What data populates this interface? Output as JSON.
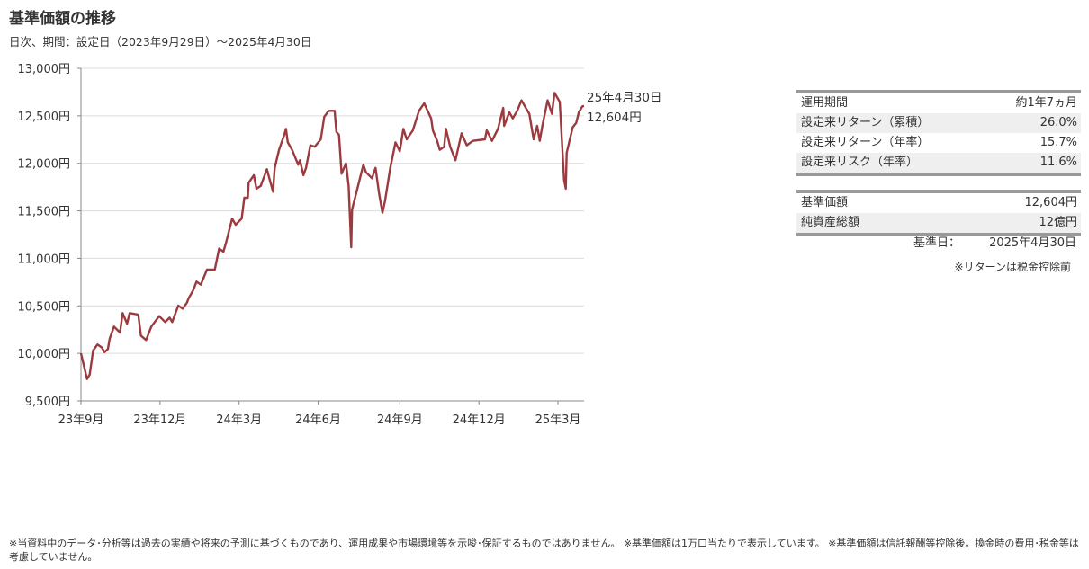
{
  "header": {
    "title": "基準価額の推移",
    "subtitle": "日次、期間：設定日（2023年9月29日）～2025年4月30日"
  },
  "chart_data": {
    "type": "line",
    "title": "",
    "xlabel": "",
    "ylabel": "",
    "ylim": [
      9500,
      13000
    ],
    "xlim": [
      "2023-09-29",
      "2025-04-30"
    ],
    "yticks": [
      9500,
      10000,
      10500,
      11000,
      11500,
      12000,
      12500,
      13000
    ],
    "ytick_labels": [
      "9,500円",
      "10,000円",
      "10,500円",
      "11,000円",
      "11,500円",
      "12,000円",
      "12,500円",
      "13,000円"
    ],
    "xticks": [
      "2023-09-29",
      "2023-12-29",
      "2024-03-29",
      "2024-06-28",
      "2024-09-30",
      "2024-12-30",
      "2025-03-31"
    ],
    "xtick_labels": [
      "23年9月",
      "23年12月",
      "24年3月",
      "24年6月",
      "24年9月",
      "24年12月",
      "25年3月"
    ],
    "grid": "horizontal",
    "line_color": "#9b3a3f",
    "end_label": {
      "date": "25年4月30日",
      "value": "12,604円"
    },
    "series": [
      {
        "points": [
          [
            "2023-09-29",
            10000
          ],
          [
            "2023-10-06",
            9730
          ],
          [
            "2023-10-09",
            9777
          ],
          [
            "2023-10-13",
            10030
          ],
          [
            "2023-10-18",
            10093
          ],
          [
            "2023-10-23",
            10062
          ],
          [
            "2023-10-26",
            10013
          ],
          [
            "2023-10-30",
            10045
          ],
          [
            "2023-11-01",
            10155
          ],
          [
            "2023-11-06",
            10282
          ],
          [
            "2023-11-13",
            10219
          ],
          [
            "2023-11-16",
            10424
          ],
          [
            "2023-11-21",
            10313
          ],
          [
            "2023-11-24",
            10424
          ],
          [
            "2023-12-04",
            10408
          ],
          [
            "2023-12-07",
            10187
          ],
          [
            "2023-12-13",
            10140
          ],
          [
            "2023-12-19",
            10282
          ],
          [
            "2023-12-28",
            10392
          ],
          [
            "2024-01-04",
            10330
          ],
          [
            "2024-01-09",
            10376
          ],
          [
            "2024-01-12",
            10330
          ],
          [
            "2024-01-19",
            10503
          ],
          [
            "2024-01-24",
            10471
          ],
          [
            "2024-01-29",
            10534
          ],
          [
            "2024-01-31",
            10581
          ],
          [
            "2024-02-05",
            10660
          ],
          [
            "2024-02-09",
            10755
          ],
          [
            "2024-02-14",
            10723
          ],
          [
            "2024-02-21",
            10881
          ],
          [
            "2024-03-01",
            10881
          ],
          [
            "2024-03-06",
            11102
          ],
          [
            "2024-03-11",
            11070
          ],
          [
            "2024-03-14",
            11165
          ],
          [
            "2024-03-21",
            11418
          ],
          [
            "2024-03-25",
            11354
          ],
          [
            "2024-04-01",
            11418
          ],
          [
            "2024-04-04",
            11638
          ],
          [
            "2024-04-08",
            11638
          ],
          [
            "2024-04-09",
            11796
          ],
          [
            "2024-04-15",
            11875
          ],
          [
            "2024-04-18",
            11733
          ],
          [
            "2024-04-23",
            11764
          ],
          [
            "2024-04-30",
            11938
          ],
          [
            "2024-05-07",
            11701
          ],
          [
            "2024-05-09",
            11953
          ],
          [
            "2024-05-14",
            12142
          ],
          [
            "2024-05-20",
            12300
          ],
          [
            "2024-05-22",
            12363
          ],
          [
            "2024-05-24",
            12221
          ],
          [
            "2024-05-29",
            12142
          ],
          [
            "2024-06-05",
            11985
          ],
          [
            "2024-06-07",
            12032
          ],
          [
            "2024-06-11",
            11875
          ],
          [
            "2024-06-14",
            11953
          ],
          [
            "2024-06-19",
            12190
          ],
          [
            "2024-06-24",
            12174
          ],
          [
            "2024-07-01",
            12253
          ],
          [
            "2024-07-05",
            12489
          ],
          [
            "2024-07-10",
            12553
          ],
          [
            "2024-07-17",
            12553
          ],
          [
            "2024-07-19",
            12331
          ],
          [
            "2024-07-22",
            12300
          ],
          [
            "2024-07-25",
            11890
          ],
          [
            "2024-07-30",
            12000
          ],
          [
            "2024-08-02",
            11764
          ],
          [
            "2024-08-05",
            11117
          ],
          [
            "2024-08-06",
            11512
          ],
          [
            "2024-08-19",
            11985
          ],
          [
            "2024-08-22",
            11906
          ],
          [
            "2024-08-29",
            11843
          ],
          [
            "2024-09-02",
            11953
          ],
          [
            "2024-09-06",
            11685
          ],
          [
            "2024-09-10",
            11480
          ],
          [
            "2024-09-13",
            11607
          ],
          [
            "2024-09-19",
            11953
          ],
          [
            "2024-09-25",
            12221
          ],
          [
            "2024-09-30",
            12127
          ],
          [
            "2024-10-04",
            12363
          ],
          [
            "2024-10-08",
            12253
          ],
          [
            "2024-10-15",
            12347
          ],
          [
            "2024-10-22",
            12553
          ],
          [
            "2024-10-28",
            12631
          ],
          [
            "2024-11-05",
            12473
          ],
          [
            "2024-11-07",
            12347
          ],
          [
            "2024-11-12",
            12237
          ],
          [
            "2024-11-15",
            12142
          ],
          [
            "2024-11-20",
            12174
          ],
          [
            "2024-11-22",
            12363
          ],
          [
            "2024-11-27",
            12174
          ],
          [
            "2024-12-03",
            12032
          ],
          [
            "2024-12-10",
            12316
          ],
          [
            "2024-12-16",
            12190
          ],
          [
            "2024-12-23",
            12237
          ],
          [
            "2025-01-06",
            12253
          ],
          [
            "2025-01-08",
            12347
          ],
          [
            "2025-01-14",
            12237
          ],
          [
            "2025-01-21",
            12363
          ],
          [
            "2025-01-27",
            12584
          ],
          [
            "2025-01-28",
            12395
          ],
          [
            "2025-02-03",
            12537
          ],
          [
            "2025-02-07",
            12473
          ],
          [
            "2025-02-12",
            12553
          ],
          [
            "2025-02-17",
            12663
          ],
          [
            "2025-02-21",
            12600
          ],
          [
            "2025-02-26",
            12521
          ],
          [
            "2025-03-03",
            12253
          ],
          [
            "2025-03-07",
            12395
          ],
          [
            "2025-03-10",
            12237
          ],
          [
            "2025-03-13",
            12395
          ],
          [
            "2025-03-19",
            12663
          ],
          [
            "2025-03-24",
            12521
          ],
          [
            "2025-03-27",
            12742
          ],
          [
            "2025-04-02",
            12647
          ],
          [
            "2025-04-07",
            11827
          ],
          [
            "2025-04-09",
            11733
          ],
          [
            "2025-04-10",
            12111
          ],
          [
            "2025-04-17",
            12379
          ],
          [
            "2025-04-21",
            12426
          ],
          [
            "2025-04-24",
            12537
          ],
          [
            "2025-04-28",
            12600
          ],
          [
            "2025-04-30",
            12604
          ]
        ]
      }
    ]
  },
  "stats_table": {
    "rows": [
      {
        "label": "運用期間",
        "value": "約1年7ヵ月"
      },
      {
        "label": "設定来リターン（累積）",
        "value": "26.0%"
      },
      {
        "label": "設定来リターン（年率）",
        "value": "15.7%"
      },
      {
        "label": "設定来リスク（年率）",
        "value": "11.6%"
      }
    ]
  },
  "nav_table": {
    "rows": [
      {
        "label": "基準価額",
        "value": "12,604円"
      },
      {
        "label": "純資産総額",
        "value": "12億円"
      }
    ],
    "base_date_label": "基準日：",
    "base_date": "2025年4月30日",
    "note": "※リターンは税金控除前"
  },
  "footer": "※当資料中のデータ･分析等は過去の実績や将来の予測に基づくものであり、運用成果や市場環境等を示唆･保証するものではありません。 ※基準価額は1万口当たりで表示しています。 ※基準価額は信託報酬等控除後。換金時の費用･税金等は考慮していません。"
}
